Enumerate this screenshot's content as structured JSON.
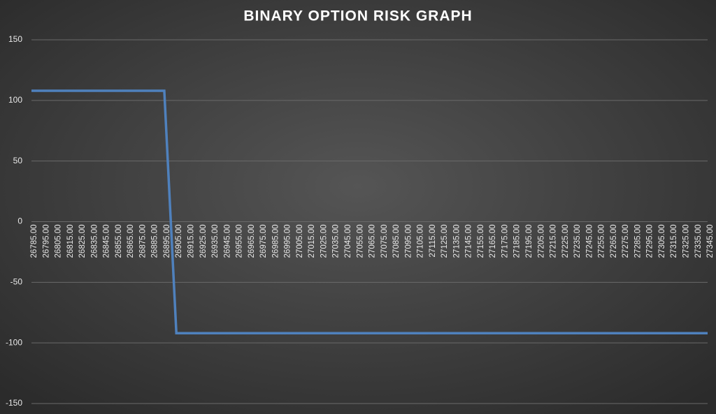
{
  "chart_data": {
    "type": "line",
    "title": "BINARY OPTION RISK GRAPH",
    "categories": [
      "26785.00",
      "26795.00",
      "26805.00",
      "26815.00",
      "26825.00",
      "26835.00",
      "26845.00",
      "26855.00",
      "26865.00",
      "26875.00",
      "26885.00",
      "26895.00",
      "26905.00",
      "26915.00",
      "26925.00",
      "26935.00",
      "26945.00",
      "26955.00",
      "26965.00",
      "26975.00",
      "26985.00",
      "26995.00",
      "27005.00",
      "27015.00",
      "27025.00",
      "27035.00",
      "27045.00",
      "27055.00",
      "27065.00",
      "27075.00",
      "27085.00",
      "27095.00",
      "27105.00",
      "27115.00",
      "27125.00",
      "27135.00",
      "27145.00",
      "27155.00",
      "27165.00",
      "27175.00",
      "27185.00",
      "27195.00",
      "27205.00",
      "27215.00",
      "27225.00",
      "27235.00",
      "27245.00",
      "27255.00",
      "27265.00",
      "27275.00",
      "27285.00",
      "27295.00",
      "27305.00",
      "27315.00",
      "27325.00",
      "27335.00",
      "27345.00"
    ],
    "values": [
      108,
      108,
      108,
      108,
      108,
      108,
      108,
      108,
      108,
      108,
      108,
      108,
      -92,
      -92,
      -92,
      -92,
      -92,
      -92,
      -92,
      -92,
      -92,
      -92,
      -92,
      -92,
      -92,
      -92,
      -92,
      -92,
      -92,
      -92,
      -92,
      -92,
      -92,
      -92,
      -92,
      -92,
      -92,
      -92,
      -92,
      -92,
      -92,
      -92,
      -92,
      -92,
      -92,
      -92,
      -92,
      -92,
      -92,
      -92,
      -92,
      -92,
      -92,
      -92,
      -92,
      -92,
      -92
    ],
    "color": "#4f81bd",
    "ylim": [
      -150,
      150
    ],
    "yticks": [
      -150,
      -100,
      -50,
      0,
      50,
      100,
      150
    ],
    "grid": true
  }
}
